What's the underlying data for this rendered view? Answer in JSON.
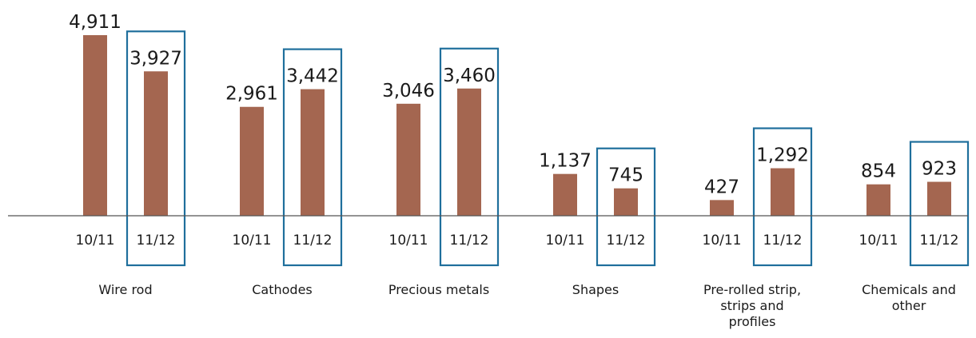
{
  "chart_data": {
    "type": "bar",
    "title": "",
    "xlabel": "",
    "ylabel": "",
    "ylim": [
      0,
      4911
    ],
    "periods": [
      "10/11",
      "11/12"
    ],
    "highlighted_period": "11/12",
    "categories": [
      "Wire rod",
      "Cathodes",
      "Precious metals",
      "Shapes",
      "Pre-rolled strip,\nstrips and\nprofiles",
      "Chemicals and\nother"
    ],
    "series": [
      {
        "values": [
          4911,
          2961,
          3046,
          1137,
          427,
          854
        ]
      },
      {
        "values": [
          3927,
          3442,
          3460,
          745,
          1292,
          923
        ]
      }
    ],
    "value_labels": [
      [
        "4,911",
        "2,961",
        "3,046",
        "1,137",
        "427",
        "854"
      ],
      [
        "3,927",
        "3,442",
        "3,460",
        "745",
        "1,292",
        "923"
      ]
    ],
    "colors": {
      "bar": "#a46650",
      "highlight_box": "#1f6f9c",
      "axis": "#555555"
    },
    "legend": "none",
    "grid": false
  }
}
